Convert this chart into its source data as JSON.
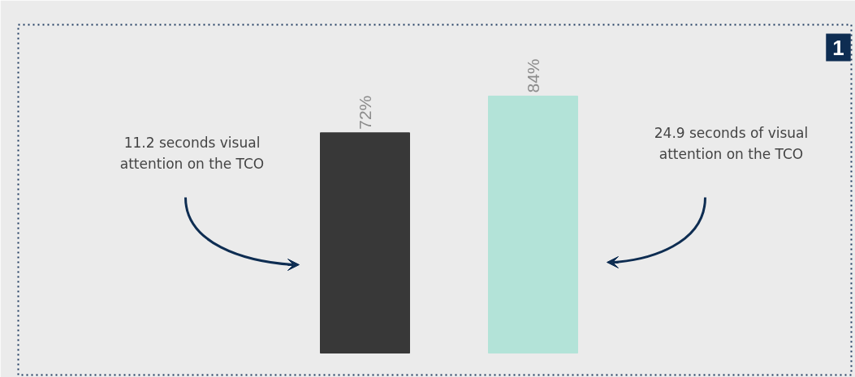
{
  "chart_data": {
    "type": "bar",
    "categories": [
      null,
      null
    ],
    "values": [
      72,
      84
    ],
    "colors": [
      "#383838",
      "#b3e3d8"
    ],
    "value_labels": [
      "72%",
      "84%"
    ],
    "annotations": [
      "11.2 seconds visual attention on the TCO",
      "24.9 seconds of visual attention on the TCO",
      "1"
    ],
    "grid": false
  }
}
